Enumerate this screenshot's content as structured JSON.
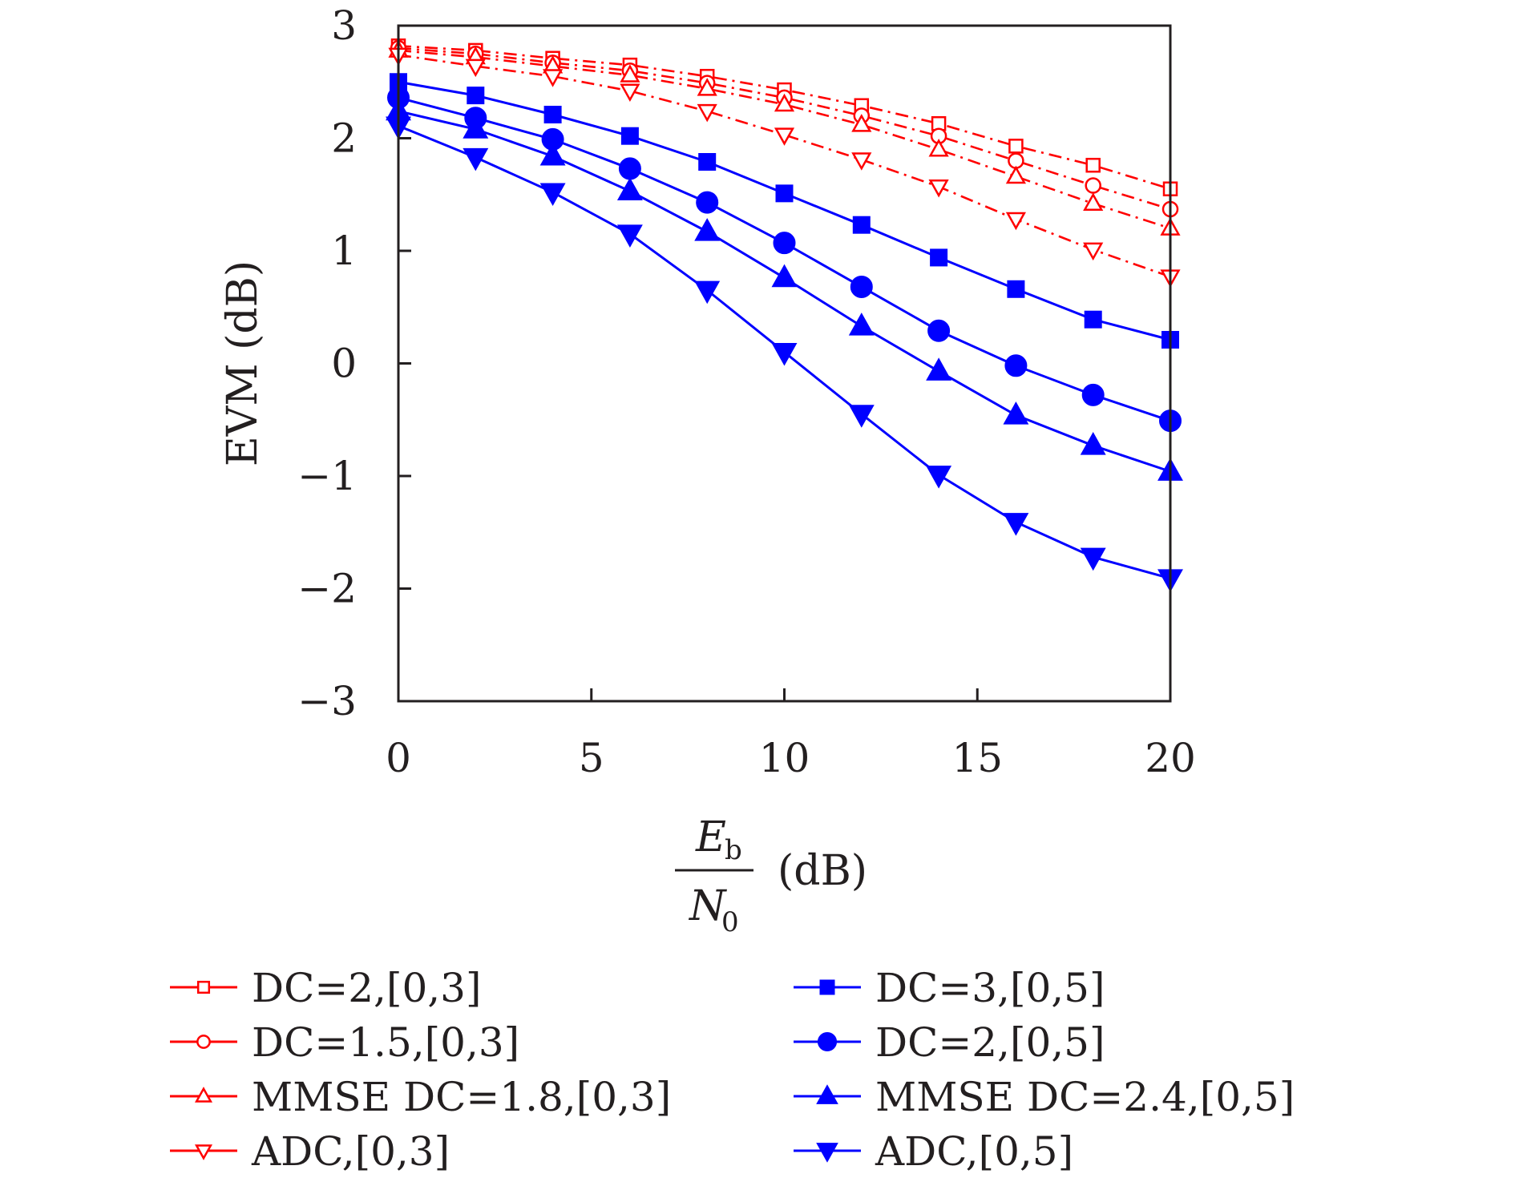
{
  "chart_data": {
    "type": "line",
    "ylabel": "EVM (dB)",
    "xlabel": {
      "numerator_main": "E",
      "numerator_sub": "b",
      "denominator_main": "N",
      "denominator_sub": "0",
      "unit": "(dB)"
    },
    "xlim": [
      0,
      20
    ],
    "ylim": [
      -3,
      3
    ],
    "xticks": [
      "0",
      "5",
      "10",
      "15",
      "20"
    ],
    "yticks": [
      "−3",
      "−2",
      "−1",
      "0",
      "1",
      "2",
      "3"
    ],
    "grid": false,
    "legend_position": "bottom",
    "x": [
      0,
      2,
      4,
      6,
      8,
      10,
      12,
      14,
      16,
      18,
      20
    ],
    "series": [
      {
        "name": "DC=2,[0,3]",
        "color": "#ff0000",
        "marker": "square-open",
        "dash": "dashdot",
        "values": [
          2.82,
          2.78,
          2.71,
          2.65,
          2.55,
          2.43,
          2.29,
          2.13,
          1.93,
          1.76,
          1.55
        ]
      },
      {
        "name": "DC=1.5,[0,3]",
        "color": "#ff0000",
        "marker": "circle-open",
        "dash": "dashdot",
        "values": [
          2.8,
          2.75,
          2.67,
          2.6,
          2.49,
          2.36,
          2.2,
          2.02,
          1.8,
          1.58,
          1.37
        ]
      },
      {
        "name": "MMSE DC=1.8,[0,3]",
        "color": "#ff0000",
        "marker": "triangle-up-open",
        "dash": "dashdot",
        "values": [
          2.78,
          2.72,
          2.64,
          2.56,
          2.44,
          2.3,
          2.12,
          1.9,
          1.66,
          1.42,
          1.2
        ]
      },
      {
        "name": "ADC,[0,3]",
        "color": "#ff0000",
        "marker": "triangle-down-open",
        "dash": "dashdot",
        "values": [
          2.74,
          2.64,
          2.55,
          2.42,
          2.24,
          2.03,
          1.81,
          1.57,
          1.28,
          1.01,
          0.77
        ]
      },
      {
        "name": "DC=3,[0,5]",
        "color": "#0000ff",
        "marker": "square-filled",
        "dash": "solid",
        "values": [
          2.5,
          2.38,
          2.21,
          2.02,
          1.79,
          1.51,
          1.23,
          0.94,
          0.66,
          0.39,
          0.21
        ]
      },
      {
        "name": "DC=2,[0,5]",
        "color": "#0000ff",
        "marker": "circle-filled",
        "dash": "solid",
        "values": [
          2.36,
          2.18,
          1.99,
          1.73,
          1.43,
          1.07,
          0.68,
          0.29,
          -0.02,
          -0.28,
          -0.51
        ]
      },
      {
        "name": "MMSE DC=2.4,[0,5]",
        "color": "#0000ff",
        "marker": "triangle-up-filled",
        "dash": "solid",
        "values": [
          2.24,
          2.08,
          1.84,
          1.53,
          1.17,
          0.76,
          0.33,
          -0.07,
          -0.46,
          -0.73,
          -0.96
        ]
      },
      {
        "name": "ADC,[0,5]",
        "color": "#0000ff",
        "marker": "triangle-down-filled",
        "dash": "solid",
        "values": [
          2.11,
          1.83,
          1.52,
          1.15,
          0.65,
          0.1,
          -0.45,
          -0.99,
          -1.41,
          -1.72,
          -1.91
        ]
      }
    ]
  }
}
